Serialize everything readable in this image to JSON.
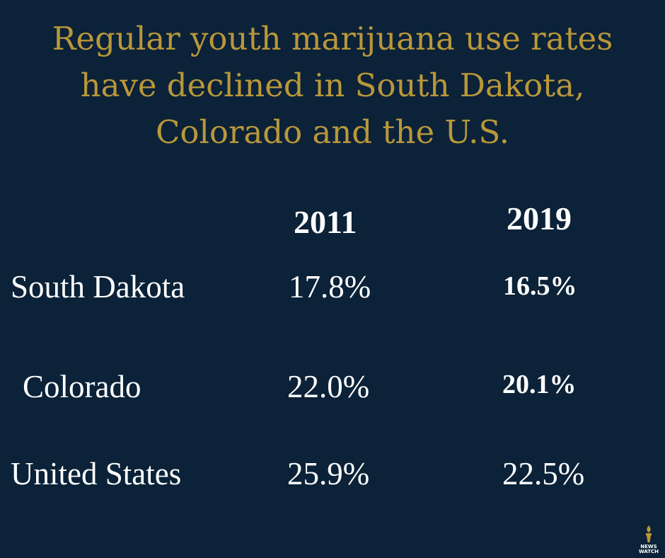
{
  "title": {
    "line1": "Regular youth marijuana use rates",
    "line2": "have declined in South Dakota,",
    "line3": "Colorado and the U.S."
  },
  "chart_data": {
    "type": "table",
    "columns": [
      "2011",
      "2019"
    ],
    "rows": [
      {
        "label": "South Dakota",
        "values": [
          "17.8%",
          "16.5%"
        ]
      },
      {
        "label": "Colorado",
        "values": [
          "22.0%",
          "20.1%"
        ]
      },
      {
        "label": "United States",
        "values": [
          "25.9%",
          "22.5%"
        ]
      }
    ]
  },
  "logo": {
    "icon": "torch-icon",
    "line1": "NEWS",
    "line2": "WATCH"
  },
  "colors": {
    "background": "#0b2238",
    "title": "#b9973a",
    "text": "#ffffff"
  }
}
